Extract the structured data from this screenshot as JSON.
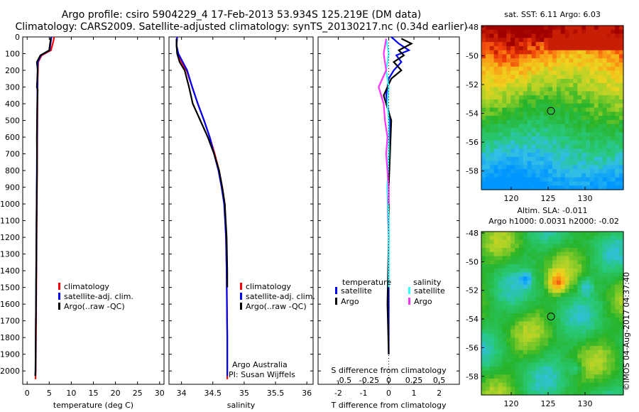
{
  "header": {
    "line1": "Argo profile: csiro 5904229_4 17-Feb-2013 53.934S 125.219E (DM data)",
    "line2": "Climatology: CARS2009. Satellite-adjusted climatology: synTS_20130217.nc (0.34d earlier)"
  },
  "colors": {
    "climatology": "#ff0000",
    "satellite": "#0000ff",
    "argo": "#000000",
    "argo_s": "#ff33ff",
    "sat_s": "#33ffff"
  },
  "chart_data": [
    {
      "type": "line",
      "id": "temperature",
      "xlabel": "temperature (deg C)",
      "ylabel": "",
      "xlim": [
        -1,
        31
      ],
      "ylim": [
        2080,
        0
      ],
      "xticks": [
        0,
        5,
        10,
        15,
        20,
        25,
        30
      ],
      "yticks": [
        0,
        100,
        200,
        300,
        400,
        500,
        600,
        700,
        800,
        900,
        1000,
        1100,
        1200,
        1300,
        1400,
        1500,
        1600,
        1700,
        1800,
        1900,
        2000
      ],
      "legend": [
        "climatology",
        "satellite-adj. clim.",
        "Argo(..raw -QC)"
      ],
      "series": [
        {
          "name": "climatology",
          "color": "#ff0000",
          "x": [
            6.1,
            6.0,
            5.4,
            3.3,
            2.5,
            2.4,
            2.35,
            2.3,
            2.25,
            2.2,
            2.15,
            2.1,
            2.05,
            2.0,
            1.95,
            1.9
          ],
          "y": [
            0,
            20,
            80,
            110,
            150,
            250,
            400,
            600,
            800,
            1000,
            1200,
            1400,
            1600,
            1800,
            2000,
            2050
          ]
        },
        {
          "name": "satellite-adj. clim.",
          "color": "#0000ff",
          "x": [
            5.5,
            5.4,
            5.1,
            3.1,
            2.4,
            2.35,
            2.3,
            2.25,
            2.2,
            2.15,
            2.1,
            2.05,
            2.0,
            1.95,
            1.9,
            1.85
          ],
          "y": [
            0,
            20,
            80,
            110,
            150,
            250,
            400,
            600,
            800,
            1000,
            1200,
            1400,
            1600,
            1800,
            2000,
            2030
          ]
        },
        {
          "name": "Argo(..raw -QC)",
          "color": "#000000",
          "x": [
            5.3,
            5.3,
            5.0,
            3.0,
            2.2,
            2.4,
            2.2,
            2.4,
            2.3,
            2.2,
            2.25,
            2.15,
            2.1,
            2.05,
            2.0,
            1.95,
            1.9,
            1.85
          ],
          "y": [
            5,
            20,
            80,
            110,
            150,
            200,
            300,
            320,
            400,
            600,
            800,
            1000,
            1200,
            1400,
            1600,
            1800,
            2000,
            2030
          ]
        }
      ]
    },
    {
      "type": "line",
      "id": "salinity",
      "xlabel": "salinity",
      "xlim": [
        33.8,
        36.1
      ],
      "ylim": [
        2080,
        0
      ],
      "xticks": [
        34,
        34.5,
        35,
        35.5,
        36
      ],
      "legend": [
        "climatology",
        "satellite-adj. clim.",
        "Argo(..raw -QC)"
      ],
      "annotation": [
        "Argo Australia",
        "PI: Susan Wijffels"
      ],
      "series": [
        {
          "name": "climatology",
          "color": "#ff0000",
          "x": [
            33.93,
            33.92,
            33.94,
            34.0,
            34.08,
            34.17,
            34.26,
            34.36,
            34.45,
            34.53,
            34.6,
            34.65,
            34.69,
            34.71,
            34.72,
            34.725,
            34.73,
            34.73
          ],
          "y": [
            0,
            50,
            100,
            150,
            200,
            300,
            400,
            500,
            600,
            700,
            800,
            900,
            1000,
            1200,
            1400,
            1600,
            1800,
            2050
          ]
        },
        {
          "name": "satellite-adj. clim.",
          "color": "#0000ff",
          "x": [
            33.93,
            33.92,
            33.95,
            34.02,
            34.09,
            34.17,
            34.26,
            34.36,
            34.45,
            34.52,
            34.59,
            34.64,
            34.68,
            34.71,
            34.72,
            34.725,
            34.73,
            34.73
          ],
          "y": [
            0,
            50,
            100,
            150,
            200,
            300,
            400,
            500,
            600,
            700,
            800,
            900,
            1000,
            1200,
            1400,
            1600,
            1800,
            2030
          ]
        },
        {
          "name": "Argo(..raw -QC)",
          "color": "#000000",
          "x": [
            33.92,
            33.92,
            33.93,
            33.97,
            34.05,
            34.12,
            34.18,
            34.3,
            34.42,
            34.52,
            34.6,
            34.65,
            34.69,
            34.72,
            34.73,
            34.73
          ],
          "y": [
            10,
            50,
            100,
            150,
            200,
            300,
            400,
            500,
            600,
            700,
            800,
            900,
            1000,
            1200,
            1400,
            1500
          ]
        }
      ]
    },
    {
      "type": "line",
      "id": "difference",
      "xlabel": "T difference from climatology",
      "xlabel_top": "S difference from climatology",
      "xlim": [
        -2.8,
        2.8
      ],
      "ylim": [
        2080,
        0
      ],
      "xticks": [
        -2,
        -1,
        0,
        1,
        2
      ],
      "top_ticks": [
        "-0.5",
        "-0.25",
        "0",
        "0.25",
        "0.5"
      ],
      "legend_headers": [
        "temperature",
        "salinity"
      ],
      "legend": [
        "satellite",
        "Argo",
        "satellite",
        "Argo"
      ],
      "series": [
        {
          "name": "satellite",
          "color": "#0000ff",
          "x": [
            0.1,
            0.4,
            0.8,
            0.3,
            0.5,
            0.2,
            0.0,
            -0.1,
            0.05,
            0.0,
            -0.05,
            0.0,
            0.0,
            0.0
          ],
          "y": [
            0,
            40,
            80,
            110,
            150,
            200,
            250,
            350,
            500,
            700,
            900,
            1200,
            1600,
            1900
          ]
        },
        {
          "name": "Argo",
          "color": "#000000",
          "x": [
            0.5,
            0.9,
            0.4,
            0.6,
            0.2,
            0.5,
            0.1,
            -0.2,
            0.1,
            0.05,
            0.0,
            0.0,
            -0.05,
            0.0
          ],
          "y": [
            10,
            40,
            80,
            110,
            150,
            200,
            250,
            350,
            500,
            700,
            900,
            1200,
            1600,
            1900
          ]
        },
        {
          "name": "satellite",
          "color": "#33ffff",
          "x": [
            -0.1,
            0.0,
            -0.1,
            0.0,
            -0.05,
            0.0,
            0.0,
            -0.05,
            0.0,
            0.0,
            0.0
          ],
          "y": [
            10,
            100,
            200,
            300,
            400,
            500,
            700,
            900,
            1100,
            1300,
            1500
          ]
        },
        {
          "name": "Argo",
          "color": "#ff33ff",
          "x": [
            -0.1,
            -0.2,
            -0.1,
            -0.4,
            -0.2,
            -0.15,
            -0.05,
            -0.1,
            0.0,
            0.0
          ],
          "y": [
            10,
            100,
            200,
            300,
            400,
            500,
            600,
            700,
            900,
            1000
          ]
        }
      ]
    }
  ],
  "maps": [
    {
      "title": "sat. SST: 6.11  Argo: 6.03",
      "lat_ticks": [
        "-48",
        "-50",
        "-52",
        "-54",
        "-56",
        "-58"
      ],
      "lon_ticks": [
        "120",
        "125",
        "130"
      ],
      "marker": "argo-location"
    },
    {
      "title1": "Altim. SLA: -0.011",
      "title2": "Argo h1000: 0.0031 h2000: -0.02",
      "lat_ticks": [
        "-48",
        "-50",
        "-52",
        "-54",
        "-56",
        "-58"
      ],
      "lon_ticks": [
        "120",
        "125",
        "130"
      ],
      "marker": "argo-location"
    }
  ],
  "stamp": "©IMOS 04-Aug-2017 04:37:40"
}
